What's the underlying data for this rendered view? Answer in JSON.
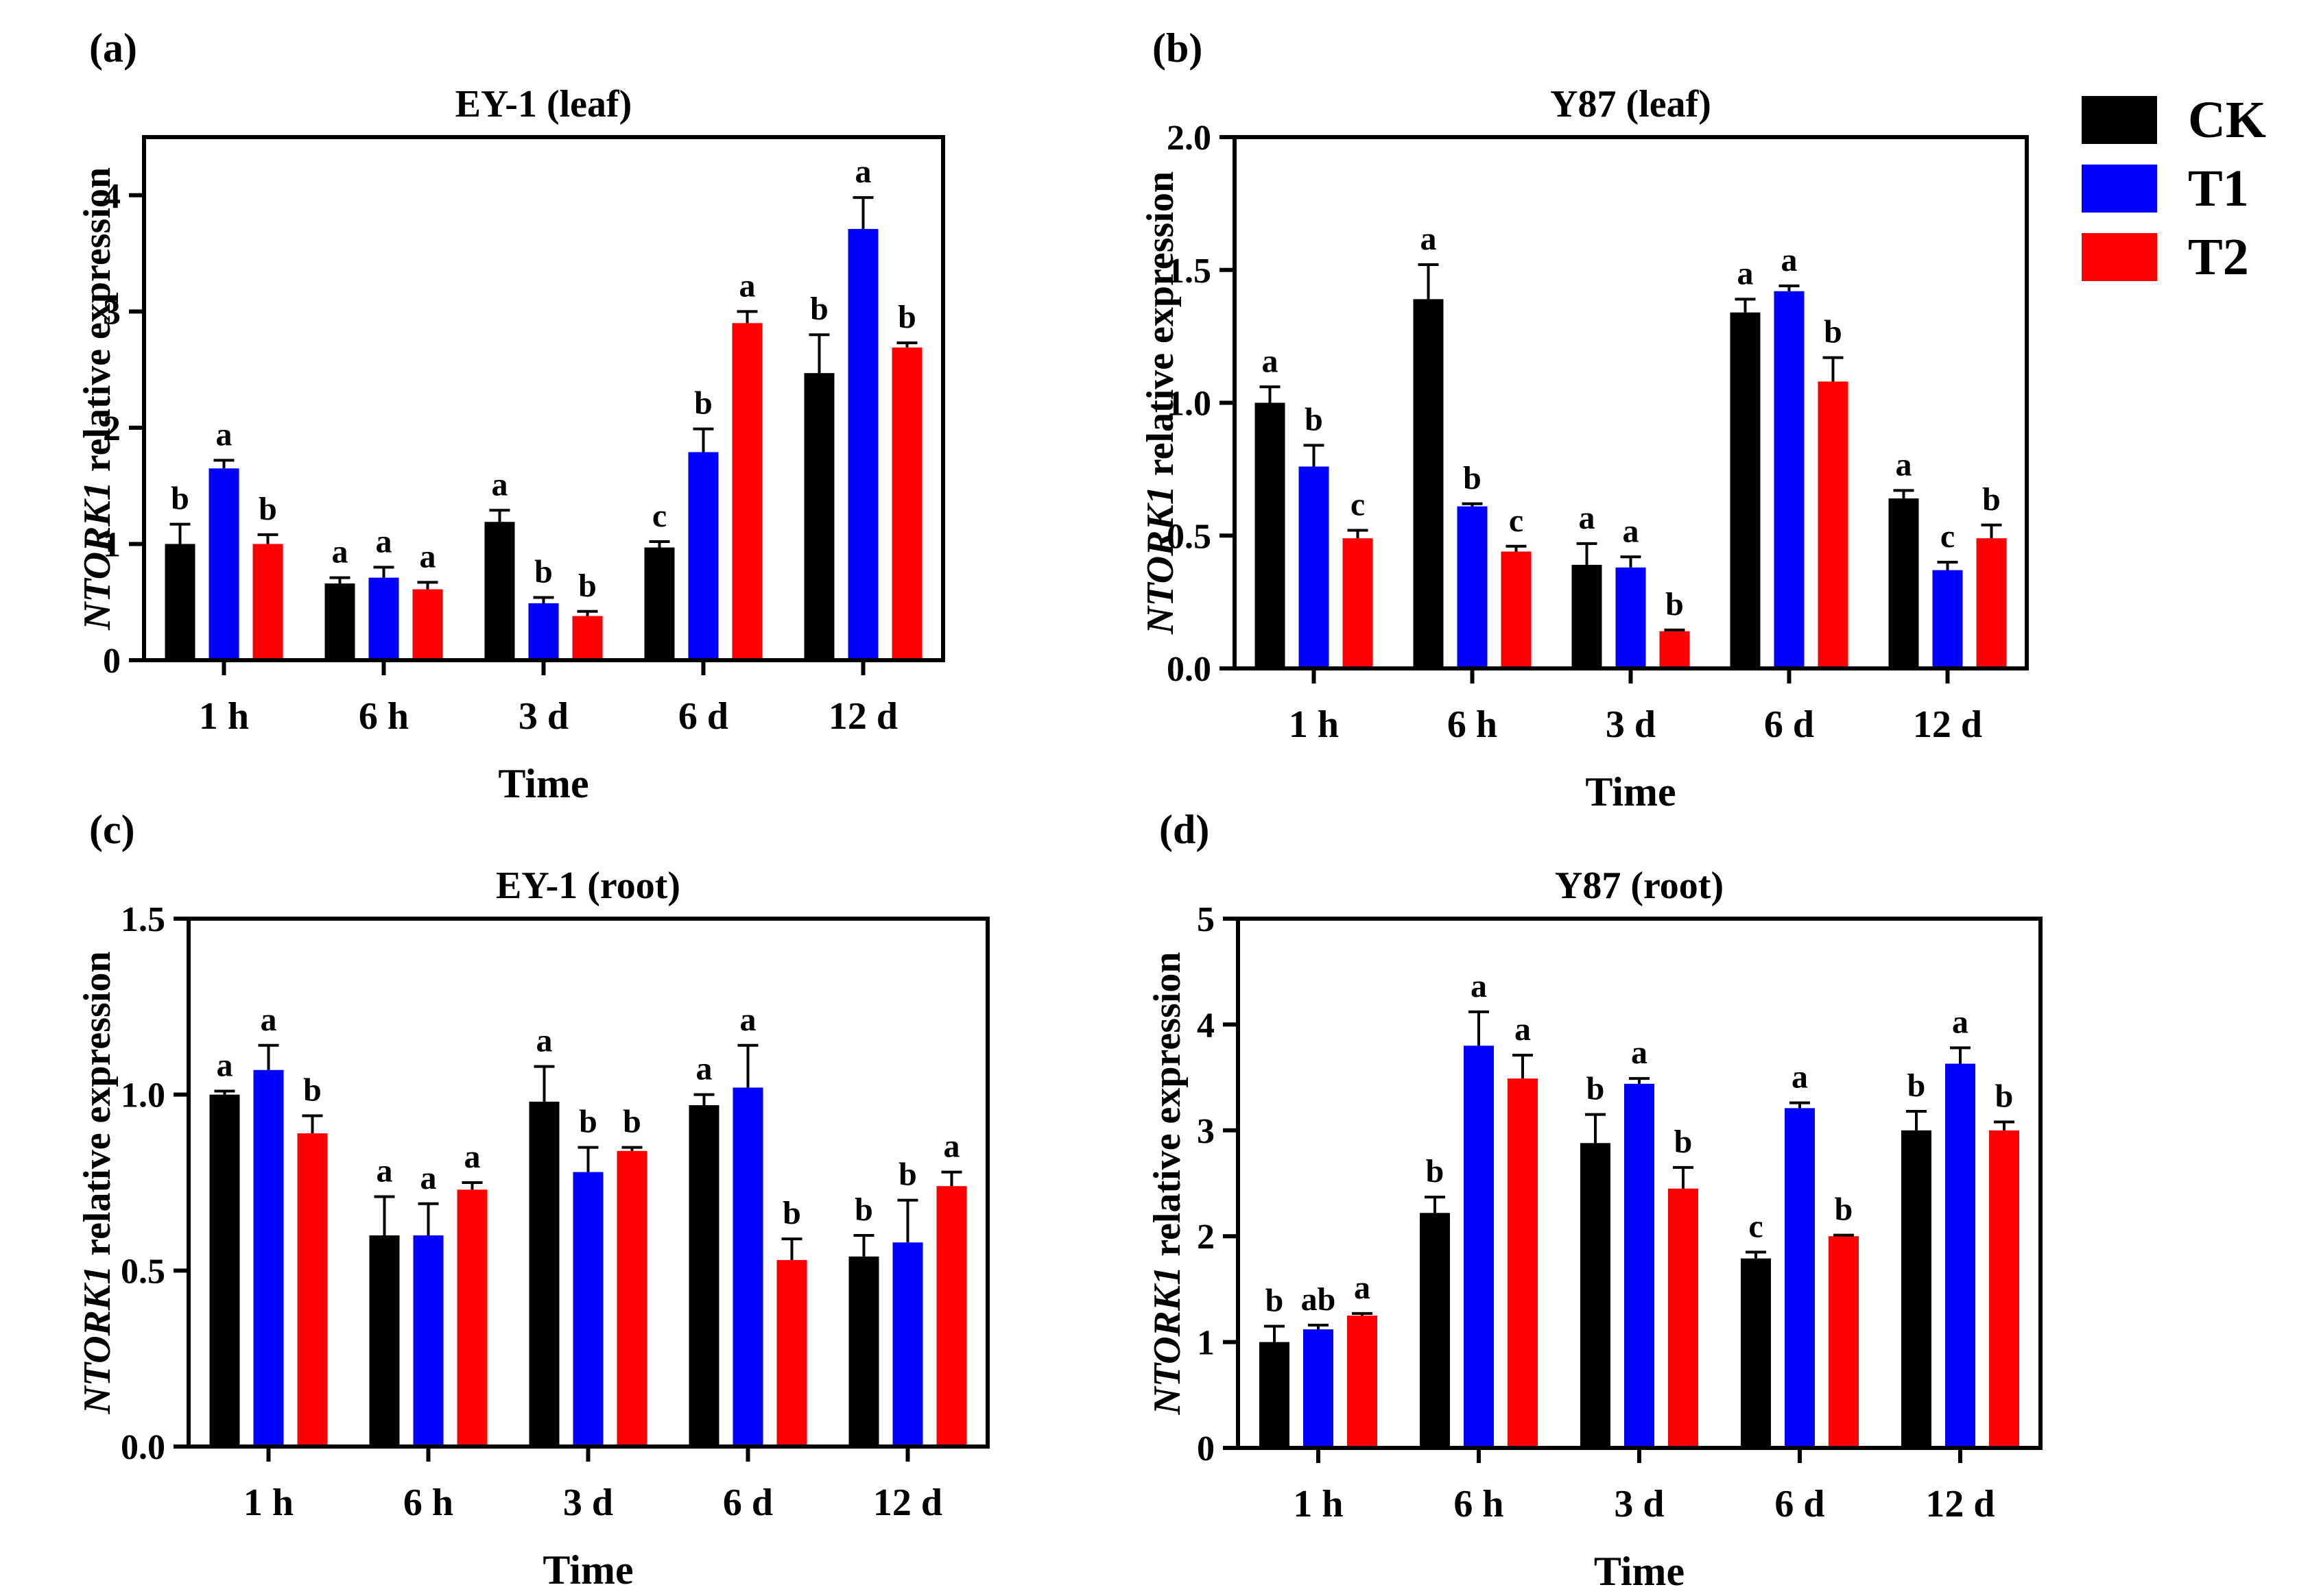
{
  "colors": {
    "CK": "#000000",
    "T1": "#0000ff",
    "T2": "#ff0000"
  },
  "legend": [
    {
      "name": "CK",
      "color": "#000000"
    },
    {
      "name": "T1",
      "color": "#0000ff"
    },
    {
      "name": "T2",
      "color": "#ff0000"
    }
  ],
  "chart_data": [
    {
      "panel_label": "(a)",
      "type": "bar",
      "title": "EY-1 (leaf)",
      "ylabel_italic": "NTORK1",
      "ylabel_rest": " relative expression",
      "xlabel": "Time",
      "categories": [
        "1 h",
        "6 h",
        "3 d",
        "6 d",
        "12 d"
      ],
      "ylim": [
        0,
        4.5
      ],
      "yticks": [
        0,
        1,
        2,
        3,
        4
      ],
      "ytick_labels": [
        "0",
        "1",
        "2",
        "3",
        "4"
      ],
      "series": [
        {
          "name": "CK",
          "values": [
            1.0,
            0.66,
            1.19,
            0.97,
            2.47
          ],
          "errors": [
            0.17,
            0.05,
            0.1,
            0.05,
            0.33
          ],
          "letters": [
            "b",
            "a",
            "a",
            "c",
            "b"
          ]
        },
        {
          "name": "T1",
          "values": [
            1.65,
            0.71,
            0.49,
            1.79,
            3.71
          ],
          "errors": [
            0.07,
            0.09,
            0.05,
            0.2,
            0.27
          ],
          "letters": [
            "a",
            "a",
            "b",
            "b",
            "a"
          ]
        },
        {
          "name": "T2",
          "values": [
            1.0,
            0.61,
            0.38,
            2.9,
            2.69
          ],
          "errors": [
            0.08,
            0.06,
            0.04,
            0.1,
            0.04
          ],
          "letters": [
            "b",
            "a",
            "b",
            "a",
            "b"
          ]
        }
      ]
    },
    {
      "panel_label": "(b)",
      "type": "bar",
      "title": "Y87 (leaf)",
      "ylabel_italic": "NTORK1",
      "ylabel_rest": " relative expression",
      "xlabel": "Time",
      "categories": [
        "1 h",
        "6 h",
        "3 d",
        "6 d",
        "12 d"
      ],
      "ylim": [
        0,
        2.0
      ],
      "yticks": [
        0,
        0.5,
        1.0,
        1.5,
        2.0
      ],
      "ytick_labels": [
        "0.0",
        "0.5",
        "1.0",
        "1.5",
        "2.0"
      ],
      "series": [
        {
          "name": "CK",
          "values": [
            1.0,
            1.39,
            0.39,
            1.34,
            0.64
          ],
          "errors": [
            0.06,
            0.13,
            0.08,
            0.05,
            0.03
          ],
          "letters": [
            "a",
            "a",
            "a",
            "a",
            "a"
          ]
        },
        {
          "name": "T1",
          "values": [
            0.76,
            0.61,
            0.38,
            1.42,
            0.37
          ],
          "errors": [
            0.08,
            0.01,
            0.04,
            0.02,
            0.03
          ],
          "letters": [
            "b",
            "b",
            "a",
            "a",
            "c"
          ]
        },
        {
          "name": "T2",
          "values": [
            0.49,
            0.44,
            0.14,
            1.08,
            0.49
          ],
          "errors": [
            0.03,
            0.02,
            0.005,
            0.09,
            0.05
          ],
          "letters": [
            "c",
            "c",
            "b",
            "b",
            "b"
          ]
        }
      ]
    },
    {
      "panel_label": "(c)",
      "type": "bar",
      "title": "EY-1 (root)",
      "ylabel_italic": "NTORK1",
      "ylabel_rest": " relative expression",
      "xlabel": "Time",
      "categories": [
        "1 h",
        "6 h",
        "3 d",
        "6 d",
        "12 d"
      ],
      "ylim": [
        0,
        1.5
      ],
      "yticks": [
        0,
        0.5,
        1.0,
        1.5
      ],
      "ytick_labels": [
        "0.0",
        "0.5",
        "1.0",
        "1.5"
      ],
      "series": [
        {
          "name": "CK",
          "values": [
            1.0,
            0.6,
            0.98,
            0.97,
            0.54
          ],
          "errors": [
            0.01,
            0.11,
            0.1,
            0.03,
            0.06
          ],
          "letters": [
            "a",
            "a",
            "a",
            "a",
            "b"
          ]
        },
        {
          "name": "T1",
          "values": [
            1.07,
            0.6,
            0.78,
            1.02,
            0.58
          ],
          "errors": [
            0.07,
            0.09,
            0.07,
            0.12,
            0.12
          ],
          "letters": [
            "a",
            "a",
            "b",
            "a",
            "b"
          ]
        },
        {
          "name": "T2",
          "values": [
            0.89,
            0.73,
            0.84,
            0.53,
            0.74
          ],
          "errors": [
            0.05,
            0.02,
            0.01,
            0.06,
            0.04
          ],
          "letters": [
            "b",
            "a",
            "b",
            "b",
            "a"
          ]
        }
      ]
    },
    {
      "panel_label": "(d)",
      "type": "bar",
      "title": "Y87 (root)",
      "ylabel_italic": "NTORK1",
      "ylabel_rest": " relative expression",
      "xlabel": "Time",
      "categories": [
        "1 h",
        "6 h",
        "3 d",
        "6 d",
        "12 d"
      ],
      "ylim": [
        0,
        5
      ],
      "yticks": [
        0,
        1,
        2,
        3,
        4,
        5
      ],
      "ytick_labels": [
        "0",
        "1",
        "2",
        "3",
        "4",
        "5"
      ],
      "series": [
        {
          "name": "CK",
          "values": [
            1.0,
            2.22,
            2.88,
            1.79,
            3.0
          ],
          "errors": [
            0.15,
            0.15,
            0.27,
            0.06,
            0.18
          ],
          "letters": [
            "b",
            "b",
            "b",
            "c",
            "b"
          ]
        },
        {
          "name": "T1",
          "values": [
            1.12,
            3.8,
            3.44,
            3.21,
            3.63
          ],
          "errors": [
            0.04,
            0.32,
            0.05,
            0.05,
            0.15
          ],
          "letters": [
            "ab",
            "a",
            "a",
            "a",
            "a"
          ]
        },
        {
          "name": "T2",
          "values": [
            1.25,
            3.49,
            2.45,
            2.0,
            3.0
          ],
          "errors": [
            0.02,
            0.22,
            0.2,
            0.01,
            0.08
          ],
          "letters": [
            "a",
            "a",
            "b",
            "b",
            "b"
          ]
        }
      ]
    }
  ]
}
